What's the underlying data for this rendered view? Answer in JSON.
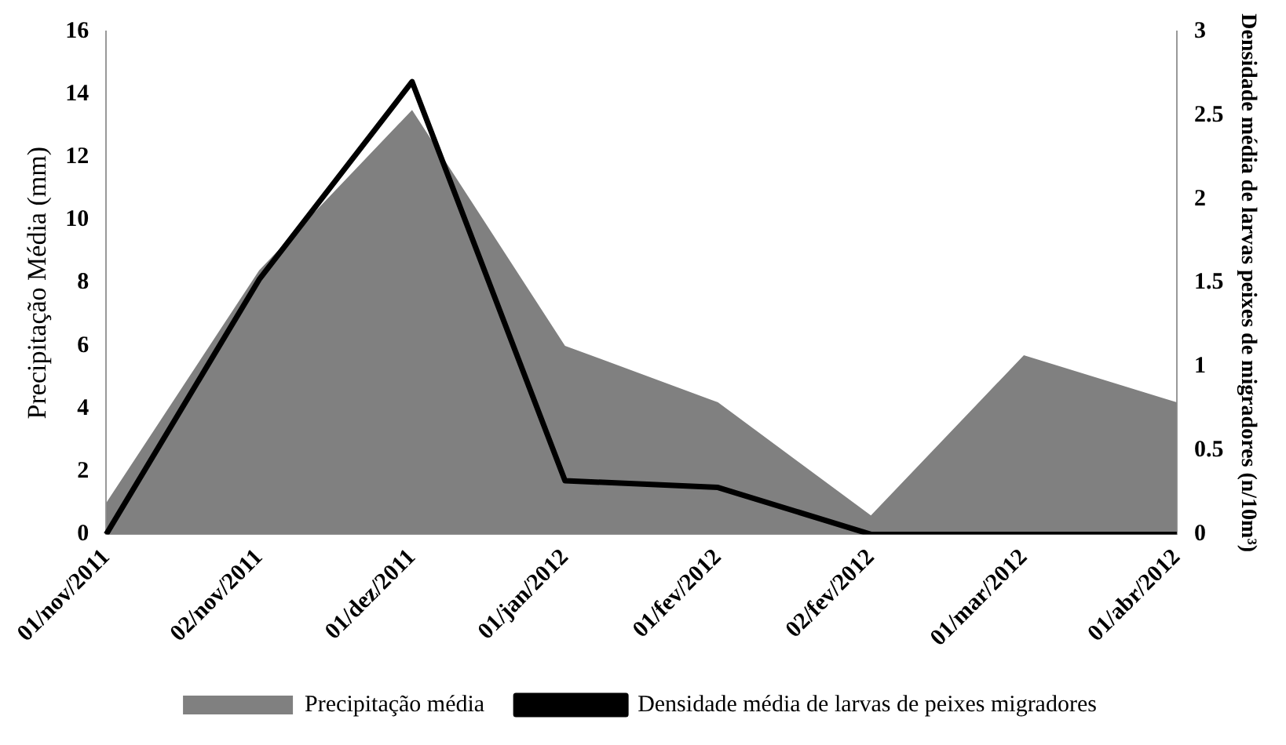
{
  "chart_data": {
    "type": "area",
    "ylabel": "Precipitação Média (mm)",
    "y2label": "Densidade média de larvas peixes de migradores (n/10m³)",
    "categories": [
      "01/nov/2011",
      "02/nov/2011",
      "01/dez/2011",
      "01/jan/2012",
      "01/fev/2012",
      "02/fev/2012",
      "01/mar/2012",
      "01/abr/2012"
    ],
    "series": [
      {
        "name": "Precipitação média",
        "color": "#808080",
        "values": [
          1.0,
          8.4,
          13.5,
          6.0,
          4.2,
          0.6,
          5.7,
          4.2
        ]
      },
      {
        "name": "Densidade média de larvas de peixes migradores",
        "type": "line",
        "axis": "y2",
        "color": "#000000",
        "values": [
          0,
          1.52,
          2.7,
          0.32,
          0.28,
          0,
          0,
          0
        ]
      }
    ],
    "ylim": [
      0,
      16
    ],
    "yticks": [
      0,
      2,
      4,
      6,
      8,
      10,
      12,
      14,
      16
    ],
    "y2lim": [
      0,
      3
    ],
    "y2ticks": [
      0,
      0.5,
      1,
      1.5,
      2,
      2.5,
      3
    ],
    "grid": false,
    "legend": "bottom",
    "marker": "none"
  }
}
